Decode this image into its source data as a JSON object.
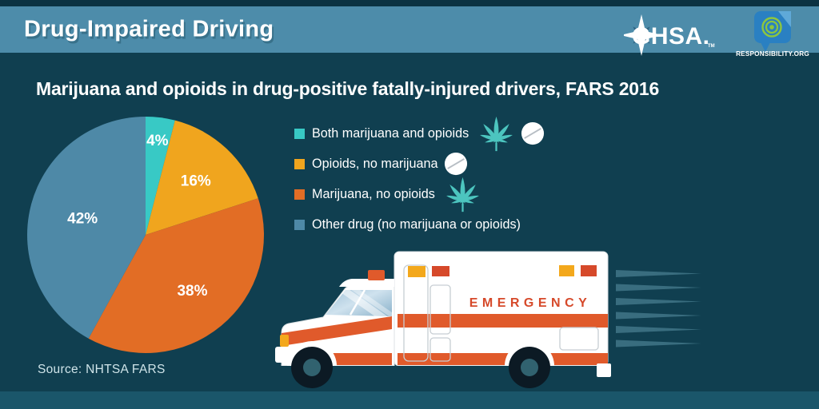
{
  "header": {
    "title": "Drug-Impaired Driving",
    "logos": {
      "ghsa": "GHSA.",
      "ghsa_tm": "TM",
      "responsibility": "RESPONSIBILITY.ORG"
    }
  },
  "chart_data": {
    "type": "pie",
    "title": "Marijuana and opioids in drug-positive fatally-injured drivers, FARS 2016",
    "unit": "%",
    "start_angle_deg": 0,
    "direction": "clockwise",
    "legend_position": "right-of-chart",
    "slices": [
      {
        "label": "Both marijuana and opioids",
        "value": 4,
        "color": "#38c9c5",
        "icons": [
          "marijuana-leaf",
          "pill"
        ]
      },
      {
        "label": "Opioids, no marijuana",
        "value": 16,
        "color": "#f0a51e",
        "icons": [
          "pill"
        ]
      },
      {
        "label": "Marijuana, no opioids",
        "value": 38,
        "color": "#e26d25",
        "icons": [
          "marijuana-leaf"
        ]
      },
      {
        "label": "Other drug (no marijuana or opioids)",
        "value": 42,
        "color": "#4e89a7",
        "icons": []
      }
    ],
    "source": "Source: NHTSA FARS"
  },
  "ambulance": {
    "label": "EMERGENCY"
  },
  "colors": {
    "top_strip": "#0b3242",
    "header_band": "#4d8caa",
    "background": "#103f50",
    "bottom_strip": "#1a566a",
    "source_text": "#cfe4e9",
    "stripe_orange": "#e05a2b",
    "emergency_red": "#d6492a",
    "amber": "#f3a81c",
    "leaf_teal": "#4cc5bf",
    "speed_line": "#396d7f",
    "wheel": "#0c1a24",
    "wheel_hub": "#31626f",
    "ghsa_star_dark": "#2f6483",
    "resp_bubble_blue": "#2a80c2",
    "resp_bubble_light": "#5fa9d8",
    "resp_rings_green": "#8dc63f"
  }
}
